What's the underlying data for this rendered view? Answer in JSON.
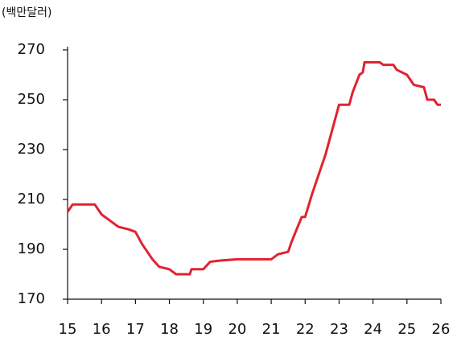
{
  "chart_data": {
    "type": "line",
    "y_label": "(백만달러)",
    "series": [
      {
        "name": null,
        "color": "#e0232f",
        "x": [
          15,
          15.15,
          15.8,
          16.0,
          16.3,
          16.5,
          16.8,
          17.0,
          17.2,
          17.5,
          17.7,
          18.0,
          18.1,
          18.2,
          18.6,
          18.65,
          19.0,
          19.2,
          19.5,
          20.0,
          21.0,
          21.2,
          21.5,
          21.6,
          21.9,
          22.0,
          22.2,
          22.4,
          22.6,
          22.8,
          23.0,
          23.3,
          23.4,
          23.6,
          23.7,
          23.75,
          24.2,
          24.3,
          24.6,
          24.7,
          25.0,
          25.2,
          25.5,
          25.6,
          25.8,
          25.9,
          26.0
        ],
        "values": [
          205,
          208,
          208,
          204,
          201,
          199,
          198,
          197,
          192,
          186,
          183,
          182,
          181,
          180,
          180,
          182,
          182,
          185,
          185.5,
          186,
          186,
          188,
          189,
          193,
          203,
          203,
          212,
          220,
          228,
          238,
          248,
          248,
          253,
          260,
          261,
          265,
          265,
          264,
          264,
          262,
          260,
          256,
          255,
          250,
          250,
          248,
          248
        ]
      }
    ],
    "xlim": [
      15,
      26
    ],
    "xticks": [
      15,
      16,
      17,
      18,
      19,
      20,
      21,
      22,
      23,
      24,
      25,
      26
    ],
    "ylim": [
      170,
      270
    ],
    "yticks": [
      170,
      190,
      210,
      230,
      250,
      270
    ],
    "grid": false
  }
}
